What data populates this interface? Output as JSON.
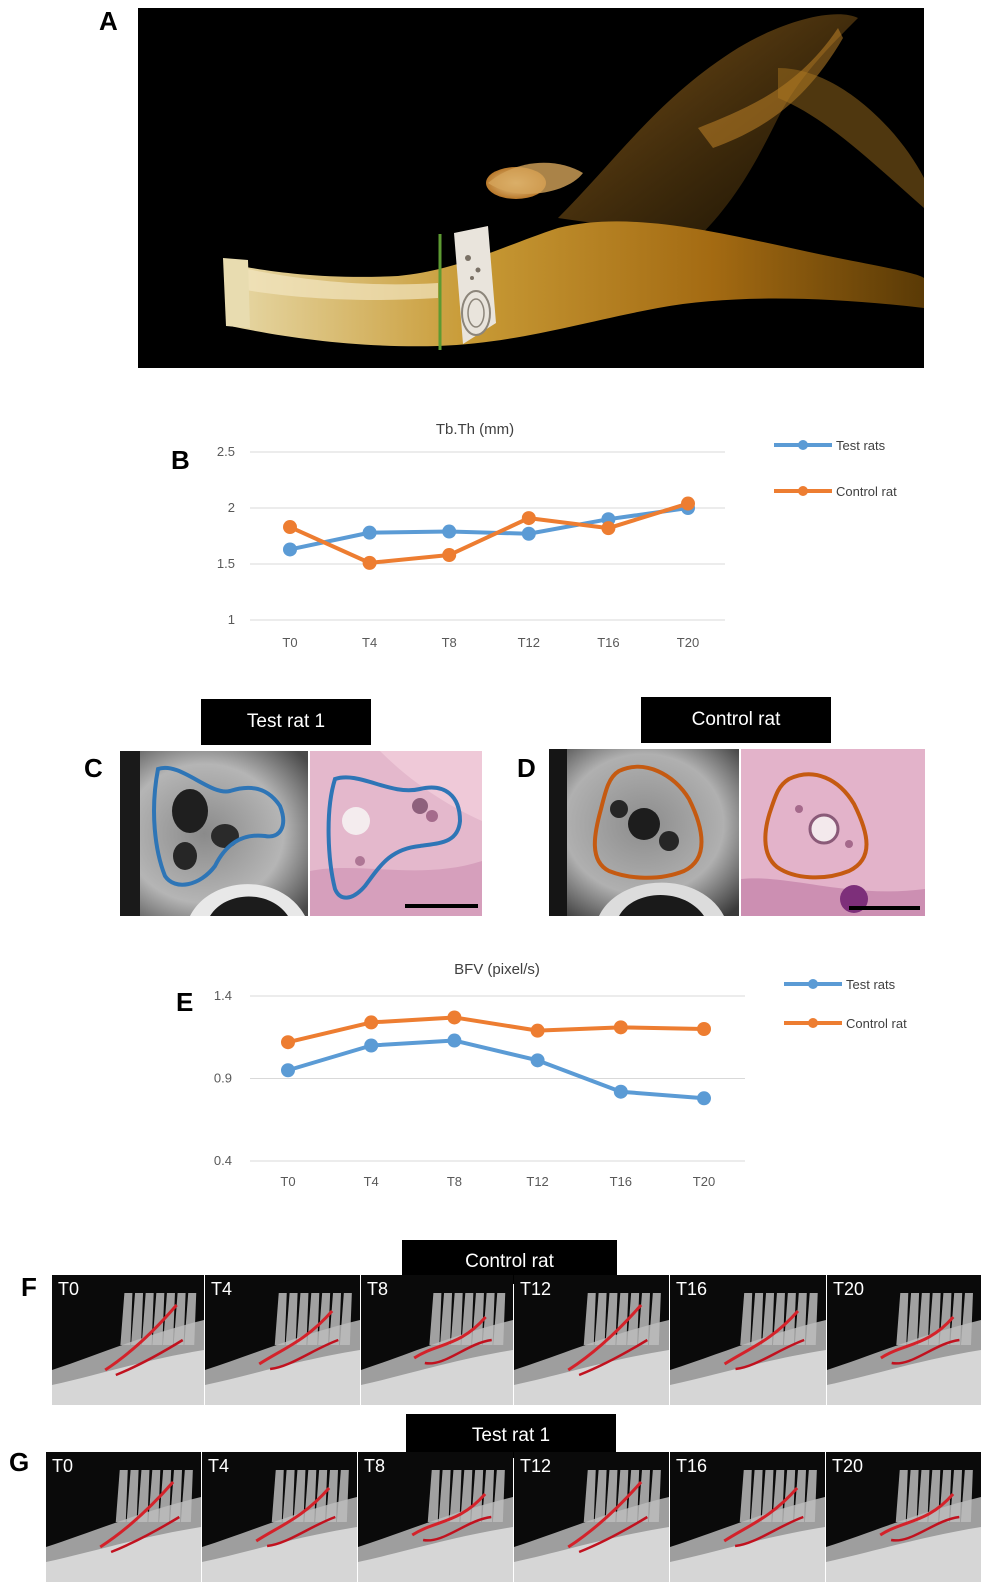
{
  "panels": {
    "a": "A",
    "b": "B",
    "c": "C",
    "d": "D",
    "e": "E",
    "f": "F",
    "g": "G"
  },
  "histology": {
    "test_label": "Test rat 1",
    "control_label": "Control rat"
  },
  "f_row": {
    "label": "Control rat",
    "frames": [
      "T0",
      "T4",
      "T8",
      "T12",
      "T16",
      "T20"
    ]
  },
  "g_row": {
    "label": "Test rat 1",
    "frames": [
      "T0",
      "T4",
      "T8",
      "T12",
      "T16",
      "T20"
    ]
  },
  "colors": {
    "test": "#5b9bd5",
    "control": "#ed7d31",
    "grid": "#d9d9d9",
    "axis_text": "#595959"
  },
  "chart_data": [
    {
      "type": "line",
      "title": "Tb.Th (mm)",
      "categories": [
        "T0",
        "T4",
        "T8",
        "T12",
        "T16",
        "T20"
      ],
      "series": [
        {
          "name": "Test rats",
          "values": [
            1.63,
            1.78,
            1.79,
            1.77,
            1.9,
            2.0
          ]
        },
        {
          "name": "Control rat",
          "values": [
            1.83,
            1.51,
            1.58,
            1.91,
            1.82,
            2.04
          ]
        }
      ],
      "ylim": [
        1,
        2.5
      ],
      "yticks": [
        "1",
        "1.5",
        "2",
        "2.5"
      ],
      "grid": true,
      "legend": "right"
    },
    {
      "type": "line",
      "title": "BFV (pixel/s)",
      "categories": [
        "T0",
        "T4",
        "T8",
        "T12",
        "T16",
        "T20"
      ],
      "series": [
        {
          "name": "Test rats",
          "values": [
            0.95,
            1.1,
            1.13,
            1.01,
            0.82,
            0.78
          ]
        },
        {
          "name": "Control rat",
          "values": [
            1.12,
            1.24,
            1.27,
            1.19,
            1.21,
            1.2
          ]
        }
      ],
      "ylim": [
        0.4,
        1.4
      ],
      "yticks": [
        "0.4",
        "0.9",
        "1.4"
      ],
      "grid": true,
      "legend": "right"
    }
  ]
}
